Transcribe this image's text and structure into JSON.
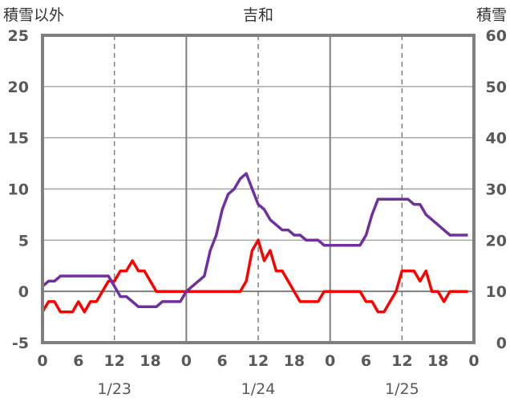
{
  "chart_data": {
    "type": "line",
    "title": "吉和",
    "ylabel_left": "積雪以外",
    "ylabel_right": "積雪",
    "x_tick_labels": [
      "0",
      "6",
      "12",
      "18",
      "0",
      "6",
      "12",
      "18",
      "0",
      "6",
      "12",
      "18",
      "0"
    ],
    "date_labels": [
      "1/23",
      "1/24",
      "1/25"
    ],
    "x_range_hours": [
      0,
      72
    ],
    "left_axis": {
      "min": -5,
      "max": 25,
      "step": 5,
      "ticks": [
        "-5",
        "0",
        "5",
        "10",
        "15",
        "20",
        "25"
      ]
    },
    "right_axis": {
      "min": 0,
      "max": 60,
      "step": 10,
      "ticks": [
        "0",
        "10",
        "20",
        "30",
        "40",
        "50",
        "60"
      ]
    },
    "grid": {
      "day_lines": "solid",
      "noon_lines": "dashed",
      "horizontal": "solid"
    },
    "series": [
      {
        "axis": "left",
        "color": "#ff0000",
        "x": [
          0,
          1,
          2,
          3,
          4,
          5,
          6,
          7,
          8,
          9,
          10,
          11,
          12,
          13,
          14,
          15,
          16,
          17,
          18,
          19,
          20,
          21,
          22,
          23,
          24,
          25,
          26,
          27,
          28,
          29,
          30,
          31,
          32,
          33,
          34,
          35,
          36,
          37,
          38,
          39,
          40,
          41,
          42,
          43,
          44,
          45,
          46,
          47,
          48,
          49,
          50,
          51,
          52,
          53,
          54,
          55,
          56,
          57,
          58,
          59,
          60,
          61,
          62,
          63,
          64,
          65,
          66,
          67,
          68,
          69,
          70,
          71
        ],
        "values": [
          -2,
          -1,
          -1,
          -2,
          -2,
          -2,
          -1,
          -2,
          -1,
          -1,
          0,
          1,
          1,
          2,
          2,
          3,
          2,
          2,
          1,
          0,
          0,
          0,
          0,
          0,
          0,
          0,
          0,
          0,
          0,
          0,
          0,
          0,
          0,
          0,
          1,
          4,
          5,
          3,
          4,
          2,
          2,
          1,
          0,
          -1,
          -1,
          -1,
          -1,
          0,
          0,
          0,
          0,
          0,
          0,
          0,
          -1,
          -1,
          -2,
          -2,
          -1,
          0,
          2,
          2,
          2,
          1,
          2,
          0,
          0,
          -1,
          0,
          0,
          0,
          0
        ]
      },
      {
        "axis": "right",
        "color": "#7030a0",
        "x": [
          0,
          1,
          2,
          3,
          4,
          5,
          6,
          7,
          8,
          9,
          10,
          11,
          12,
          13,
          14,
          15,
          16,
          17,
          18,
          19,
          20,
          21,
          22,
          23,
          24,
          25,
          26,
          27,
          28,
          29,
          30,
          31,
          32,
          33,
          34,
          35,
          36,
          37,
          38,
          39,
          40,
          41,
          42,
          43,
          44,
          45,
          46,
          47,
          48,
          49,
          50,
          51,
          52,
          53,
          54,
          55,
          56,
          57,
          58,
          59,
          60,
          61,
          62,
          63,
          64,
          65,
          66,
          67,
          68,
          69,
          70,
          71
        ],
        "values": [
          11,
          12,
          12,
          13,
          13,
          13,
          13,
          13,
          13,
          13,
          13,
          13,
          11,
          9,
          9,
          8,
          7,
          7,
          7,
          7,
          8,
          8,
          8,
          8,
          10,
          11,
          12,
          13,
          18,
          21,
          26,
          29,
          30,
          32,
          33,
          30,
          27,
          26,
          24,
          23,
          22,
          22,
          21,
          21,
          20,
          20,
          20,
          19,
          19,
          19,
          19,
          19,
          19,
          19,
          21,
          25,
          28,
          28,
          28,
          28,
          28,
          28,
          27,
          27,
          25,
          24,
          23,
          22,
          21,
          21,
          21,
          21
        ]
      }
    ]
  }
}
